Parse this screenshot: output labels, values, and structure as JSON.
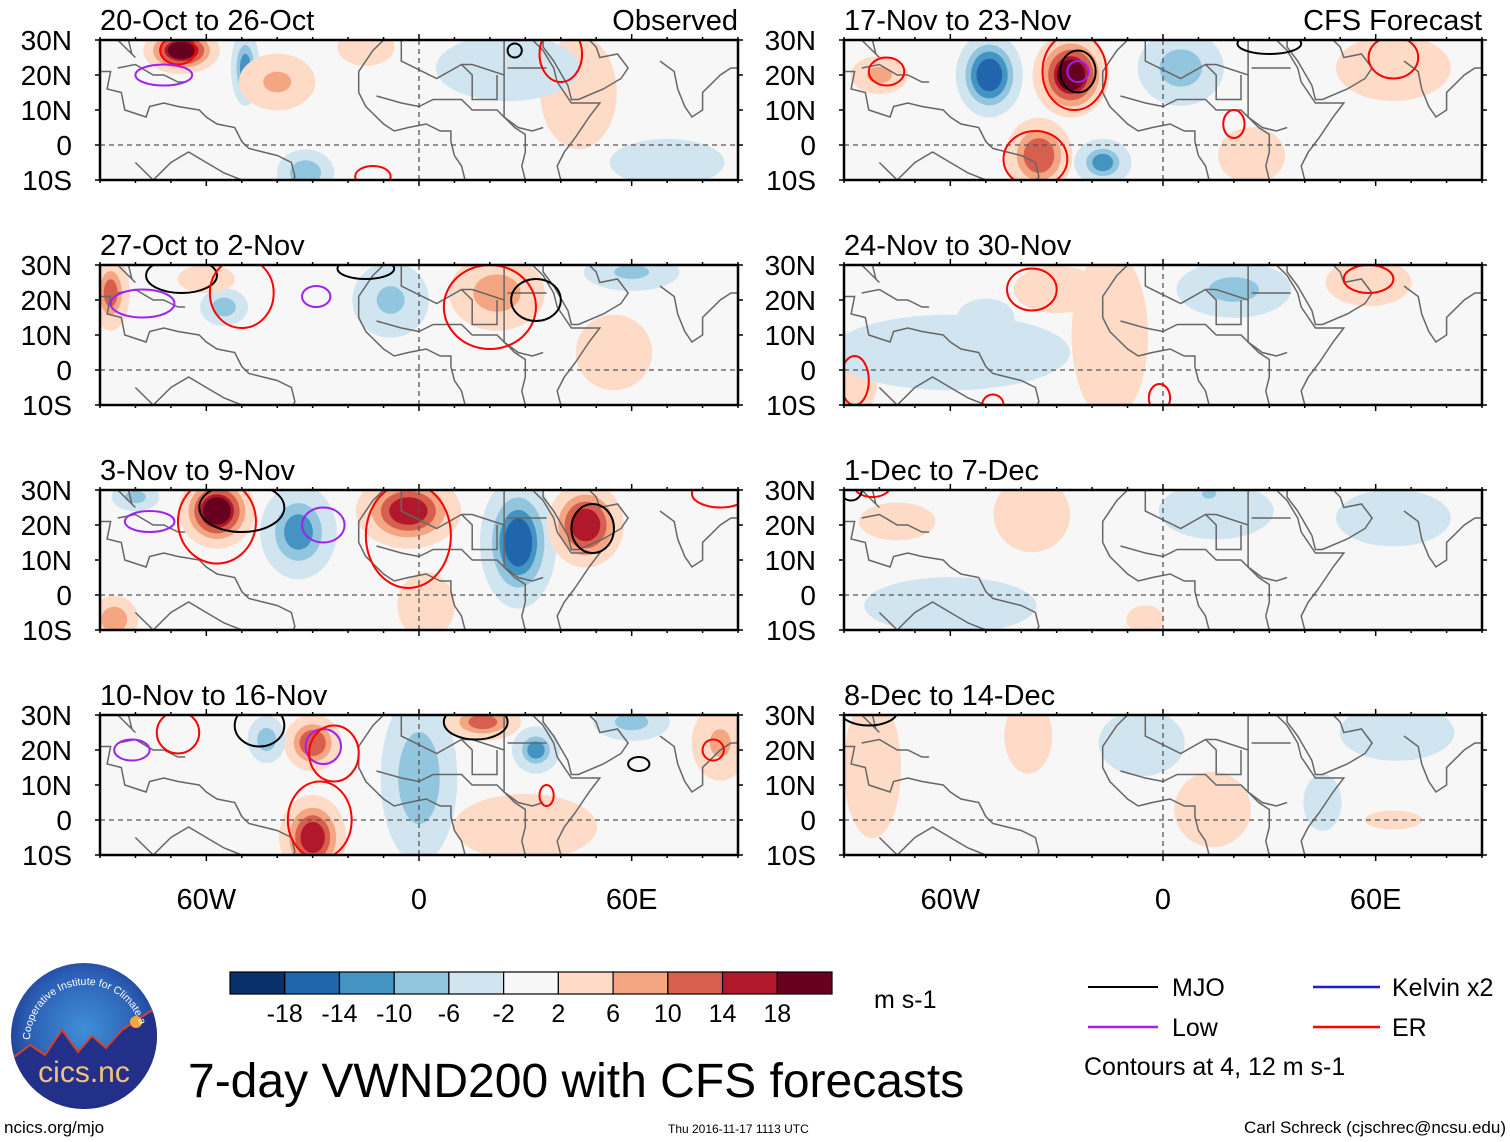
{
  "figure": {
    "title": "7-day VWND200 with CFS forecasts",
    "url": "ncics.org/mjo",
    "timestamp": "Thu 2016-11-17 1113 UTC",
    "author": "Carl Schreck (cjschrec@ncsu.edu)",
    "logo": {
      "name": "cics-nc-logo",
      "arc_text": "Cooperative Institute for Climate and Satellites",
      "wordmark": "cics.nc"
    }
  },
  "colorbar": {
    "unit_label": "m s-1",
    "levels": [
      -18,
      -14,
      -10,
      -6,
      -2,
      2,
      6,
      10,
      14,
      18
    ],
    "colors": [
      "#08306b",
      "#2166ac",
      "#4393c3",
      "#92c5de",
      "#d1e5f0",
      "#f7f7f7",
      "#fddbc7",
      "#f4a582",
      "#d6604d",
      "#b2182b",
      "#67001f"
    ]
  },
  "legend": {
    "items": [
      {
        "label": "MJO",
        "color": "#000000"
      },
      {
        "label": "Kelvin x2",
        "color": "#1a1adb"
      },
      {
        "label": "Low",
        "color": "#a020f0"
      },
      {
        "label": "ER",
        "color": "#ff0000"
      }
    ],
    "note": "Contours at 4, 12 m s-1"
  },
  "chart_data": {
    "type": "heatmap",
    "variable": "200-hPa meridional wind anomaly (VWND200), 7-day mean",
    "units": "m s-1",
    "xlim": [
      -90,
      90
    ],
    "ylim": [
      -10,
      30
    ],
    "x_ticks": [
      {
        "value": -60,
        "label": "60W"
      },
      {
        "value": 0,
        "label": "0"
      },
      {
        "value": 60,
        "label": "60E"
      }
    ],
    "y_ticks": [
      {
        "value": 30,
        "label": "30N"
      },
      {
        "value": 20,
        "label": "20N"
      },
      {
        "value": 10,
        "label": "10N"
      },
      {
        "value": 0,
        "label": "0"
      },
      {
        "value": -10,
        "label": "10S"
      }
    ],
    "grid": "dashed equator and prime meridian",
    "panels": [
      {
        "id": "p1",
        "title": "20-Oct to 26-Oct",
        "corner_label": "Observed",
        "column": 0,
        "row": 0,
        "anomalies": [
          {
            "lon": -67,
            "lat": 27,
            "rlon": 8,
            "rlat": 5,
            "value": 19
          },
          {
            "lon": -49,
            "lat": 22,
            "rlon": 3,
            "rlat": 8,
            "value": -12
          },
          {
            "lon": -40,
            "lat": 18,
            "rlon": 8,
            "rlat": 6,
            "value": 7
          },
          {
            "lon": -32,
            "lat": -8,
            "rlon": 6,
            "rlat": 5,
            "value": -10
          },
          {
            "lon": -15,
            "lat": 28,
            "rlon": 6,
            "rlat": 4,
            "value": 6
          },
          {
            "lon": 45,
            "lat": 15,
            "rlon": 8,
            "rlat": 12,
            "value": 4
          },
          {
            "lon": 70,
            "lat": -5,
            "rlon": 12,
            "rlat": 5,
            "value": -4
          },
          {
            "lon": 25,
            "lat": 22,
            "rlon": 15,
            "rlat": 7,
            "value": -4
          }
        ],
        "contours": [
          {
            "type": "ER",
            "lon": -68,
            "lat": 27,
            "rlon": 5,
            "rlat": 4
          },
          {
            "type": "Low",
            "lon": -72,
            "lat": 20,
            "rlon": 8,
            "rlat": 3
          },
          {
            "type": "MJO",
            "lon": 27,
            "lat": 27,
            "rlon": 2,
            "rlat": 2
          },
          {
            "type": "ER",
            "lon": 40,
            "lat": 26,
            "rlon": 6,
            "rlat": 8
          },
          {
            "type": "ER",
            "lon": -13,
            "lat": -9,
            "rlon": 5,
            "rlat": 3
          }
        ]
      },
      {
        "id": "p2",
        "title": "27-Oct to 2-Nov",
        "corner_label": "",
        "column": 0,
        "row": 1,
        "anomalies": [
          {
            "lon": -87,
            "lat": 22,
            "rlon": 4,
            "rlat": 8,
            "value": 11
          },
          {
            "lon": -55,
            "lat": 18,
            "rlon": 5,
            "rlat": 4,
            "value": -9
          },
          {
            "lon": -8,
            "lat": 20,
            "rlon": 8,
            "rlat": 8,
            "value": -7
          },
          {
            "lon": 22,
            "lat": 22,
            "rlon": 10,
            "rlat": 8,
            "value": 9
          },
          {
            "lon": 60,
            "lat": 28,
            "rlon": 10,
            "rlat": 4,
            "value": -7
          },
          {
            "lon": -60,
            "lat": 26,
            "rlon": 6,
            "rlat": 3,
            "value": 5
          },
          {
            "lon": 55,
            "lat": 5,
            "rlon": 8,
            "rlat": 8,
            "value": 3
          }
        ],
        "contours": [
          {
            "type": "MJO",
            "lon": -67,
            "lat": 27,
            "rlon": 10,
            "rlat": 5
          },
          {
            "type": "Low",
            "lon": -78,
            "lat": 19,
            "rlon": 9,
            "rlat": 4
          },
          {
            "type": "ER",
            "lon": -50,
            "lat": 22,
            "rlon": 9,
            "rlat": 10
          },
          {
            "type": "Low",
            "lon": -29,
            "lat": 21,
            "rlon": 4,
            "rlat": 3
          },
          {
            "type": "ER",
            "lon": 20,
            "lat": 18,
            "rlon": 13,
            "rlat": 12
          },
          {
            "type": "MJO",
            "lon": 33,
            "lat": 20,
            "rlon": 7,
            "rlat": 6
          },
          {
            "type": "MJO",
            "lon": -15,
            "lat": 29,
            "rlon": 8,
            "rlat": 3
          }
        ]
      },
      {
        "id": "p3",
        "title": "3-Nov to 9-Nov",
        "corner_label": "",
        "column": 0,
        "row": 2,
        "anomalies": [
          {
            "lon": -57,
            "lat": 24,
            "rlon": 8,
            "rlat": 8,
            "value": 19
          },
          {
            "lon": -34,
            "lat": 18,
            "rlon": 8,
            "rlat": 10,
            "value": -12
          },
          {
            "lon": -3,
            "lat": 24,
            "rlon": 11,
            "rlat": 8,
            "value": 16
          },
          {
            "lon": 28,
            "lat": 15,
            "rlon": 8,
            "rlat": 14,
            "value": -15
          },
          {
            "lon": 47,
            "lat": 20,
            "rlon": 8,
            "rlat": 9,
            "value": 17
          },
          {
            "lon": 2,
            "lat": -3,
            "rlon": 6,
            "rlat": 7,
            "value": 6
          },
          {
            "lon": -86,
            "lat": -7,
            "rlon": 5,
            "rlat": 5,
            "value": 10
          },
          {
            "lon": -80,
            "lat": 28,
            "rlon": 5,
            "rlat": 3,
            "value": -8
          }
        ],
        "contours": [
          {
            "type": "ER",
            "lon": -57,
            "lat": 21,
            "rlon": 11,
            "rlat": 12
          },
          {
            "type": "MJO",
            "lon": -50,
            "lat": 25,
            "rlon": 12,
            "rlat": 7
          },
          {
            "type": "Low",
            "lon": -76,
            "lat": 21,
            "rlon": 7,
            "rlat": 3
          },
          {
            "type": "Low",
            "lon": -27,
            "lat": 20,
            "rlon": 6,
            "rlat": 5
          },
          {
            "type": "ER",
            "lon": -3,
            "lat": 17,
            "rlon": 12,
            "rlat": 15
          },
          {
            "type": "MJO",
            "lon": 49,
            "lat": 19,
            "rlon": 6,
            "rlat": 7
          },
          {
            "type": "ER",
            "lon": 85,
            "lat": 29,
            "rlon": 8,
            "rlat": 4
          }
        ]
      },
      {
        "id": "p4",
        "title": "10-Nov to 16-Nov",
        "corner_label": "",
        "column": 0,
        "row": 3,
        "anomalies": [
          {
            "lon": -30,
            "lat": 22,
            "rlon": 6,
            "rlat": 6,
            "value": 14
          },
          {
            "lon": -30,
            "lat": -5,
            "rlon": 7,
            "rlat": 9,
            "value": 16
          },
          {
            "lon": 0,
            "lat": 12,
            "rlon": 8,
            "rlat": 18,
            "value": -10
          },
          {
            "lon": 18,
            "lat": 28,
            "rlon": 8,
            "rlat": 4,
            "value": 12
          },
          {
            "lon": 33,
            "lat": 20,
            "rlon": 5,
            "rlat": 5,
            "value": -11
          },
          {
            "lon": -43,
            "lat": 23,
            "rlon": 4,
            "rlat": 5,
            "value": -9
          },
          {
            "lon": 30,
            "lat": -2,
            "rlon": 15,
            "rlat": 7,
            "value": 4
          },
          {
            "lon": 85,
            "lat": 22,
            "rlon": 6,
            "rlat": 8,
            "value": 7
          },
          {
            "lon": 60,
            "lat": 28,
            "rlon": 8,
            "rlat": 4,
            "value": -8
          }
        ],
        "contours": [
          {
            "type": "Low",
            "lon": -27,
            "lat": 21,
            "rlon": 5,
            "rlat": 5
          },
          {
            "type": "ER",
            "lon": -24,
            "lat": 19,
            "rlon": 7,
            "rlat": 8
          },
          {
            "type": "ER",
            "lon": -28,
            "lat": 0,
            "rlon": 9,
            "rlat": 11
          },
          {
            "type": "MJO",
            "lon": -45,
            "lat": 27,
            "rlon": 7,
            "rlat": 6
          },
          {
            "type": "Low",
            "lon": -81,
            "lat": 20,
            "rlon": 5,
            "rlat": 3
          },
          {
            "type": "ER",
            "lon": -68,
            "lat": 25,
            "rlon": 6,
            "rlat": 6
          },
          {
            "type": "MJO",
            "lon": 62,
            "lat": 16,
            "rlon": 3,
            "rlat": 2
          },
          {
            "type": "ER",
            "lon": 36,
            "lat": 7,
            "rlon": 2,
            "rlat": 3
          },
          {
            "type": "ER",
            "lon": 83,
            "lat": 20,
            "rlon": 3,
            "rlat": 3
          },
          {
            "type": "MJO",
            "lon": 16,
            "lat": 28,
            "rlon": 9,
            "rlat": 5
          }
        ]
      },
      {
        "id": "p5",
        "title": "17-Nov to 23-Nov",
        "corner_label": "CFS Forecast",
        "column": 1,
        "row": 0,
        "anomalies": [
          {
            "lon": -49,
            "lat": 20,
            "rlon": 7,
            "rlat": 9,
            "value": -17
          },
          {
            "lon": -26,
            "lat": 20,
            "rlon": 8,
            "rlat": 9,
            "value": 19
          },
          {
            "lon": -35,
            "lat": -3,
            "rlon": 7,
            "rlat": 8,
            "value": 14
          },
          {
            "lon": -17,
            "lat": -5,
            "rlon": 6,
            "rlat": 5,
            "value": -11
          },
          {
            "lon": 5,
            "lat": 22,
            "rlon": 9,
            "rlat": 8,
            "value": -9
          },
          {
            "lon": -80,
            "lat": 20,
            "rlon": 6,
            "rlat": 4,
            "value": 8
          },
          {
            "lon": 25,
            "lat": -3,
            "rlon": 7,
            "rlat": 6,
            "value": 5
          },
          {
            "lon": 65,
            "lat": 22,
            "rlon": 12,
            "rlat": 7,
            "value": 3
          }
        ],
        "contours": [
          {
            "type": "ER",
            "lon": -25,
            "lat": 21,
            "rlon": 9,
            "rlat": 11
          },
          {
            "type": "MJO",
            "lon": -24,
            "lat": 21,
            "rlon": 5,
            "rlat": 6
          },
          {
            "type": "Low",
            "lon": -24,
            "lat": 21,
            "rlon": 3,
            "rlat": 3
          },
          {
            "type": "ER",
            "lon": -36,
            "lat": -4,
            "rlon": 9,
            "rlat": 8
          },
          {
            "type": "ER",
            "lon": -78,
            "lat": 21,
            "rlon": 5,
            "rlat": 4
          },
          {
            "type": "ER",
            "lon": 65,
            "lat": 25,
            "rlon": 7,
            "rlat": 6
          },
          {
            "type": "ER",
            "lon": 20,
            "lat": 6,
            "rlon": 3,
            "rlat": 4
          },
          {
            "type": "MJO",
            "lon": 30,
            "lat": 29,
            "rlon": 9,
            "rlat": 3
          }
        ]
      },
      {
        "id": "p6",
        "title": "24-Nov to 30-Nov",
        "corner_label": "",
        "column": 1,
        "row": 1,
        "anomalies": [
          {
            "lon": -30,
            "lat": 23,
            "rlon": 9,
            "rlat": 5,
            "value": 6
          },
          {
            "lon": 20,
            "lat": 23,
            "rlon": 12,
            "rlat": 6,
            "value": -8
          },
          {
            "lon": 58,
            "lat": 25,
            "rlon": 9,
            "rlat": 5,
            "value": 6
          },
          {
            "lon": -86,
            "lat": -3,
            "rlon": 4,
            "rlat": 7,
            "value": 6
          },
          {
            "lon": -50,
            "lat": 15,
            "rlon": 6,
            "rlat": 4,
            "value": -5
          },
          {
            "lon": -60,
            "lat": 5,
            "rlon": 25,
            "rlat": 8,
            "value": -3
          },
          {
            "lon": -15,
            "lat": 10,
            "rlon": 8,
            "rlat": 18,
            "value": 3
          }
        ],
        "contours": [
          {
            "type": "ER",
            "lon": -37,
            "lat": 23,
            "rlon": 7,
            "rlat": 6
          },
          {
            "type": "ER",
            "lon": 58,
            "lat": 26,
            "rlon": 7,
            "rlat": 4
          },
          {
            "type": "ER",
            "lon": -87,
            "lat": -3,
            "rlon": 4,
            "rlat": 7
          },
          {
            "type": "ER",
            "lon": -1,
            "lat": -8,
            "rlon": 3,
            "rlat": 4
          },
          {
            "type": "ER",
            "lon": -48,
            "lat": -10,
            "rlon": 3,
            "rlat": 3
          }
        ]
      },
      {
        "id": "p7",
        "title": "1-Dec to 7-Dec",
        "corner_label": "",
        "column": 1,
        "row": 2,
        "anomalies": [
          {
            "lon": -37,
            "lat": 23,
            "rlon": 8,
            "rlat": 8,
            "value": 3
          },
          {
            "lon": -75,
            "lat": 21,
            "rlon": 8,
            "rlat": 4,
            "value": 3
          },
          {
            "lon": 15,
            "lat": 24,
            "rlon": 12,
            "rlat": 6,
            "value": -4
          },
          {
            "lon": 65,
            "lat": 22,
            "rlon": 12,
            "rlat": 6,
            "value": -3
          },
          {
            "lon": -60,
            "lat": -3,
            "rlon": 18,
            "rlat": 6,
            "value": -3
          },
          {
            "lon": -5,
            "lat": -7,
            "rlon": 4,
            "rlat": 3,
            "value": 3
          },
          {
            "lon": 13,
            "lat": 29,
            "rlon": 4,
            "rlat": 3,
            "value": -7
          }
        ],
        "contours": [
          {
            "type": "ER",
            "lon": -82,
            "lat": 31,
            "rlon": 5,
            "rlat": 3
          },
          {
            "type": "MJO",
            "lon": -88,
            "lat": 30,
            "rlon": 3,
            "rlat": 3
          }
        ]
      },
      {
        "id": "p8",
        "title": "8-Dec to 14-Dec",
        "corner_label": "",
        "column": 1,
        "row": 3,
        "anomalies": [
          {
            "lon": -82,
            "lat": 15,
            "rlon": 6,
            "rlat": 15,
            "value": 3
          },
          {
            "lon": -38,
            "lat": 24,
            "rlon": 5,
            "rlat": 8,
            "value": 3
          },
          {
            "lon": -6,
            "lat": 22,
            "rlon": 9,
            "rlat": 7,
            "value": -3
          },
          {
            "lon": 14,
            "lat": 3,
            "rlon": 8,
            "rlat": 8,
            "value": 3
          },
          {
            "lon": 66,
            "lat": 25,
            "rlon": 12,
            "rlat": 6,
            "value": -6
          },
          {
            "lon": 45,
            "lat": 5,
            "rlon": 4,
            "rlat": 6,
            "value": -3
          },
          {
            "lon": 65,
            "lat": 0,
            "rlon": 6,
            "rlat": 2,
            "value": 3
          }
        ],
        "contours": [
          {
            "type": "MJO",
            "lon": -83,
            "lat": 31,
            "rlon": 8,
            "rlat": 4
          }
        ]
      }
    ]
  }
}
